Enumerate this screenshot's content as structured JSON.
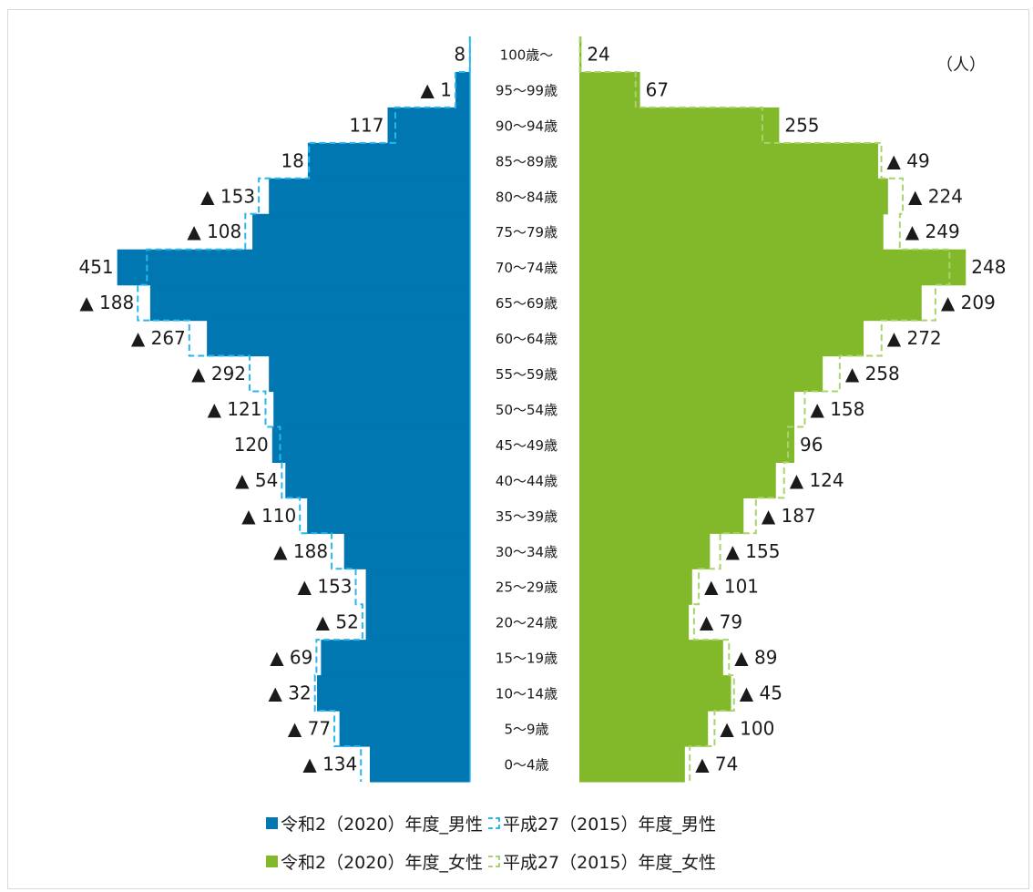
{
  "chart_data": {
    "type": "bar",
    "subtype": "population-pyramid",
    "unit_label": "（人）",
    "categories": [
      "100歳～",
      "95～99歳",
      "90～94歳",
      "85～89歳",
      "80～84歳",
      "75～79歳",
      "70～74歳",
      "65～69歳",
      "60～64歳",
      "55～59歳",
      "50～54歳",
      "45～49歳",
      "40～44歳",
      "35～39歳",
      "30～34歳",
      "25～29歳",
      "20～24歳",
      "15～19歳",
      "10～14歳",
      "5～9歳",
      "0～4歳"
    ],
    "colors": {
      "male_2020": "#0077b0",
      "male_2015": "#29b6f0",
      "female_2020": "#82b92a",
      "female_2015": "#a9d46a",
      "marker": "#000000"
    },
    "series": [
      {
        "name": "令和2（2020）年度_男性",
        "values": [
          12,
          220,
          1250,
          2460,
          3050,
          3300,
          5350,
          4850,
          3990,
          3050,
          2980,
          3000,
          2800,
          2470,
          1910,
          1580,
          1580,
          2260,
          2320,
          1980,
          1520
        ]
      },
      {
        "name": "平成27（2015）年度_男性",
        "values": [
          4,
          221,
          1133,
          2442,
          3203,
          3408,
          4899,
          5038,
          4257,
          3342,
          3101,
          2880,
          2854,
          2580,
          2098,
          1733,
          1632,
          2329,
          2352,
          2057,
          1654
        ]
      },
      {
        "name": "令和2（2020）年度_女性",
        "values": [
          32,
          920,
          3030,
          4530,
          4680,
          4610,
          5860,
          5190,
          4310,
          3690,
          3260,
          3260,
          2980,
          2490,
          1980,
          1710,
          1660,
          2180,
          2300,
          1950,
          1600
        ]
      },
      {
        "name": "平成27（2015）年度_女性",
        "values": [
          8,
          853,
          2775,
          4579,
          4904,
          4859,
          5612,
          5399,
          4582,
          3948,
          3418,
          3164,
          3104,
          2677,
          2135,
          1811,
          1739,
          2269,
          2345,
          2050,
          1674
        ]
      }
    ],
    "male_change_labels": [
      "8",
      "▲ 1",
      "117",
      "18",
      "▲ 153",
      "▲ 108",
      "451",
      "▲ 188",
      "▲ 267",
      "▲ 292",
      "▲ 121",
      "120",
      "▲ 54",
      "▲ 110",
      "▲ 188",
      "▲ 153",
      "▲ 52",
      "▲ 69",
      "▲ 32",
      "▲ 77",
      "▲ 134"
    ],
    "female_change_labels": [
      "24",
      "67",
      "255",
      "▲ 49",
      "▲ 224",
      "▲ 249",
      "248",
      "▲ 209",
      "▲ 272",
      "▲ 258",
      "▲ 158",
      "96",
      "▲ 124",
      "▲ 187",
      "▲ 155",
      "▲ 101",
      "▲ 79",
      "▲ 89",
      "▲ 45",
      "▲ 100",
      "▲ 74"
    ],
    "legend": {
      "position": "bottom",
      "items": [
        {
          "label": "令和2（2020）年度_男性",
          "style": "solid",
          "color": "#0077b0"
        },
        {
          "label": "平成27（2015）年度_男性",
          "style": "dashed",
          "color": "#29b6f0"
        },
        {
          "label": "令和2（2020）年度_女性",
          "style": "solid",
          "color": "#82b92a"
        },
        {
          "label": "平成27（2015）年度_女性",
          "style": "dashed",
          "color": "#a9d46a"
        }
      ]
    },
    "grid": false
  }
}
